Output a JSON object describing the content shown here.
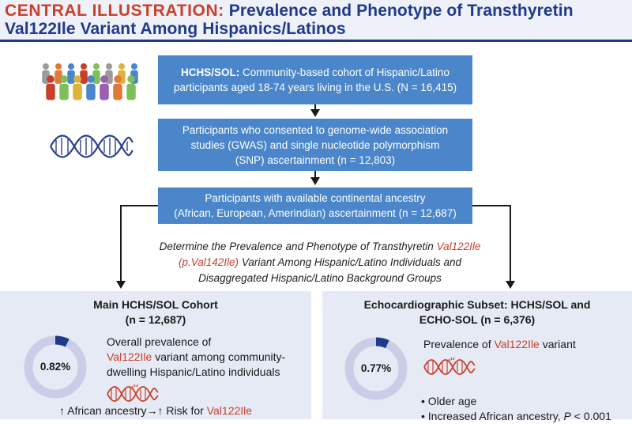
{
  "header": {
    "label": "CENTRAL ILLUSTRATION:",
    "title_part1": "Prevalence and Phenotype of Transthyretin",
    "title_part2": "Val122Ile Variant Among Hispanics/Latinos"
  },
  "flow": {
    "box1_bold": "HCHS/SOL:",
    "box1_line1": "Community-based cohort of Hispanic/Latino",
    "box1_line2": "participants aged 18-74 years living in the U.S. (N = 16,415)",
    "box2_line1": "Participants who consented to genome-wide association",
    "box2_line2": "studies (GWAS) and single nucleotide polymorphism",
    "box2_line3": "(SNP) ascertainment (n = 12,803)",
    "box3_line1": "Participants with available continental ancestry",
    "box3_line2": "(African, European, Amerindian) ascertainment (n = 12,687)"
  },
  "objective": {
    "pre": "Determine the Prevalence and Phenotype of Transthyretin",
    "variant": "Val122Ile",
    "variant2": "(p.Val142Ile)",
    "post1": "Variant Among Hispanic/Latino Individuals and",
    "post2": "Disaggregated Hispanic/Latino Background Groups"
  },
  "main_cohort": {
    "title_line1": "Main HCHS/SOL Cohort",
    "title_line2": "(n = 12,687)",
    "prevalence_value": "0.82%",
    "prevalence_fraction": 0.0082,
    "text_line1": "Overall prevalence of",
    "text_variant": "Val122Ile",
    "text_line2_rest": "variant among community-",
    "text_line3": "dwelling Hispanic/Latino individuals",
    "bottom_pre": "↑ African ancestry→↑ Risk for",
    "bottom_variant": "Val122Ile"
  },
  "echo_subset": {
    "title_line1": "Echocardiographic Subset: HCHS/SOL and",
    "title_line2": "ECHO-SOL (n = 6,376)",
    "prevalence_value": "0.77%",
    "prevalence_fraction": 0.0077,
    "text_pre": "Prevalence of",
    "text_variant": "Val122Ile",
    "text_post": "variant",
    "bullet1": "• Older age",
    "bullet2_pre": "• Increased African ancestry,",
    "bullet2_p": "P",
    "bullet2_post": "< 0.001"
  },
  "colors": {
    "header_blue": "#1f3a8a",
    "accent_red": "#c8402a",
    "flow_box": "#4a86c9",
    "panel_bg": "#e6eaf5",
    "donut_track": "#c9cde6",
    "donut_fill": "#1f3a8a"
  },
  "icons": {
    "people": "people-group-icon",
    "dna": "dna-icon"
  }
}
